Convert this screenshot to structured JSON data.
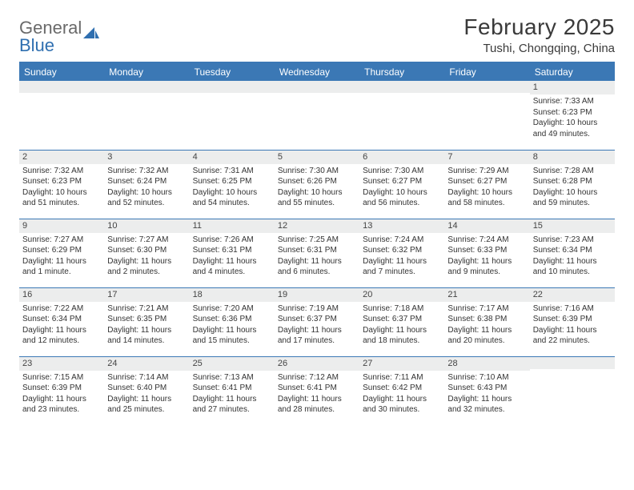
{
  "logo": {
    "text1": "General",
    "text2": "Blue"
  },
  "title": "February 2025",
  "subtitle": "Tushi, Chongqing, China",
  "colors": {
    "header_bg": "#3b78b5",
    "header_text": "#ffffff",
    "daynum_bg": "#eceded",
    "border": "#3b78b5",
    "logo_blue": "#2f6fb0",
    "text": "#333333"
  },
  "day_headers": [
    "Sunday",
    "Monday",
    "Tuesday",
    "Wednesday",
    "Thursday",
    "Friday",
    "Saturday"
  ],
  "weeks": [
    [
      {
        "n": "",
        "sr": "",
        "ss": "",
        "dl": ""
      },
      {
        "n": "",
        "sr": "",
        "ss": "",
        "dl": ""
      },
      {
        "n": "",
        "sr": "",
        "ss": "",
        "dl": ""
      },
      {
        "n": "",
        "sr": "",
        "ss": "",
        "dl": ""
      },
      {
        "n": "",
        "sr": "",
        "ss": "",
        "dl": ""
      },
      {
        "n": "",
        "sr": "",
        "ss": "",
        "dl": ""
      },
      {
        "n": "1",
        "sr": "Sunrise: 7:33 AM",
        "ss": "Sunset: 6:23 PM",
        "dl": "Daylight: 10 hours and 49 minutes."
      }
    ],
    [
      {
        "n": "2",
        "sr": "Sunrise: 7:32 AM",
        "ss": "Sunset: 6:23 PM",
        "dl": "Daylight: 10 hours and 51 minutes."
      },
      {
        "n": "3",
        "sr": "Sunrise: 7:32 AM",
        "ss": "Sunset: 6:24 PM",
        "dl": "Daylight: 10 hours and 52 minutes."
      },
      {
        "n": "4",
        "sr": "Sunrise: 7:31 AM",
        "ss": "Sunset: 6:25 PM",
        "dl": "Daylight: 10 hours and 54 minutes."
      },
      {
        "n": "5",
        "sr": "Sunrise: 7:30 AM",
        "ss": "Sunset: 6:26 PM",
        "dl": "Daylight: 10 hours and 55 minutes."
      },
      {
        "n": "6",
        "sr": "Sunrise: 7:30 AM",
        "ss": "Sunset: 6:27 PM",
        "dl": "Daylight: 10 hours and 56 minutes."
      },
      {
        "n": "7",
        "sr": "Sunrise: 7:29 AM",
        "ss": "Sunset: 6:27 PM",
        "dl": "Daylight: 10 hours and 58 minutes."
      },
      {
        "n": "8",
        "sr": "Sunrise: 7:28 AM",
        "ss": "Sunset: 6:28 PM",
        "dl": "Daylight: 10 hours and 59 minutes."
      }
    ],
    [
      {
        "n": "9",
        "sr": "Sunrise: 7:27 AM",
        "ss": "Sunset: 6:29 PM",
        "dl": "Daylight: 11 hours and 1 minute."
      },
      {
        "n": "10",
        "sr": "Sunrise: 7:27 AM",
        "ss": "Sunset: 6:30 PM",
        "dl": "Daylight: 11 hours and 2 minutes."
      },
      {
        "n": "11",
        "sr": "Sunrise: 7:26 AM",
        "ss": "Sunset: 6:31 PM",
        "dl": "Daylight: 11 hours and 4 minutes."
      },
      {
        "n": "12",
        "sr": "Sunrise: 7:25 AM",
        "ss": "Sunset: 6:31 PM",
        "dl": "Daylight: 11 hours and 6 minutes."
      },
      {
        "n": "13",
        "sr": "Sunrise: 7:24 AM",
        "ss": "Sunset: 6:32 PM",
        "dl": "Daylight: 11 hours and 7 minutes."
      },
      {
        "n": "14",
        "sr": "Sunrise: 7:24 AM",
        "ss": "Sunset: 6:33 PM",
        "dl": "Daylight: 11 hours and 9 minutes."
      },
      {
        "n": "15",
        "sr": "Sunrise: 7:23 AM",
        "ss": "Sunset: 6:34 PM",
        "dl": "Daylight: 11 hours and 10 minutes."
      }
    ],
    [
      {
        "n": "16",
        "sr": "Sunrise: 7:22 AM",
        "ss": "Sunset: 6:34 PM",
        "dl": "Daylight: 11 hours and 12 minutes."
      },
      {
        "n": "17",
        "sr": "Sunrise: 7:21 AM",
        "ss": "Sunset: 6:35 PM",
        "dl": "Daylight: 11 hours and 14 minutes."
      },
      {
        "n": "18",
        "sr": "Sunrise: 7:20 AM",
        "ss": "Sunset: 6:36 PM",
        "dl": "Daylight: 11 hours and 15 minutes."
      },
      {
        "n": "19",
        "sr": "Sunrise: 7:19 AM",
        "ss": "Sunset: 6:37 PM",
        "dl": "Daylight: 11 hours and 17 minutes."
      },
      {
        "n": "20",
        "sr": "Sunrise: 7:18 AM",
        "ss": "Sunset: 6:37 PM",
        "dl": "Daylight: 11 hours and 18 minutes."
      },
      {
        "n": "21",
        "sr": "Sunrise: 7:17 AM",
        "ss": "Sunset: 6:38 PM",
        "dl": "Daylight: 11 hours and 20 minutes."
      },
      {
        "n": "22",
        "sr": "Sunrise: 7:16 AM",
        "ss": "Sunset: 6:39 PM",
        "dl": "Daylight: 11 hours and 22 minutes."
      }
    ],
    [
      {
        "n": "23",
        "sr": "Sunrise: 7:15 AM",
        "ss": "Sunset: 6:39 PM",
        "dl": "Daylight: 11 hours and 23 minutes."
      },
      {
        "n": "24",
        "sr": "Sunrise: 7:14 AM",
        "ss": "Sunset: 6:40 PM",
        "dl": "Daylight: 11 hours and 25 minutes."
      },
      {
        "n": "25",
        "sr": "Sunrise: 7:13 AM",
        "ss": "Sunset: 6:41 PM",
        "dl": "Daylight: 11 hours and 27 minutes."
      },
      {
        "n": "26",
        "sr": "Sunrise: 7:12 AM",
        "ss": "Sunset: 6:41 PM",
        "dl": "Daylight: 11 hours and 28 minutes."
      },
      {
        "n": "27",
        "sr": "Sunrise: 7:11 AM",
        "ss": "Sunset: 6:42 PM",
        "dl": "Daylight: 11 hours and 30 minutes."
      },
      {
        "n": "28",
        "sr": "Sunrise: 7:10 AM",
        "ss": "Sunset: 6:43 PM",
        "dl": "Daylight: 11 hours and 32 minutes."
      },
      {
        "n": "",
        "sr": "",
        "ss": "",
        "dl": ""
      }
    ]
  ]
}
